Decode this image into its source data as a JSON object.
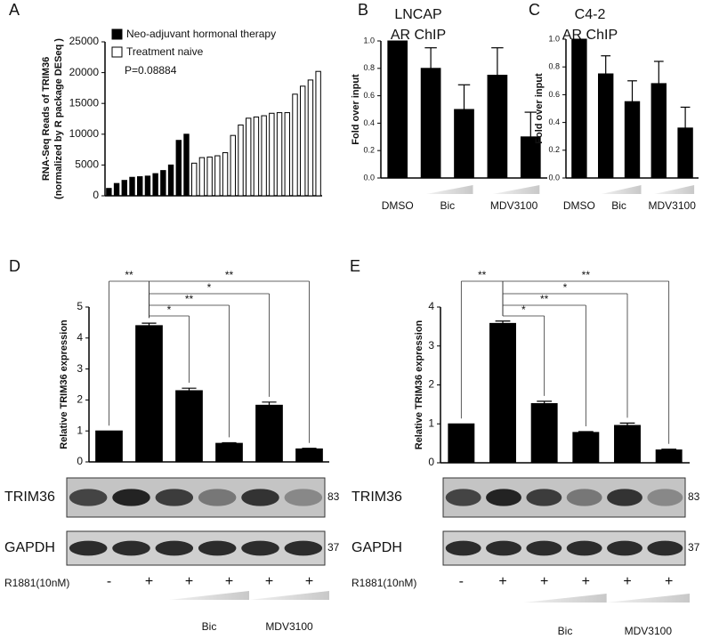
{
  "chart_data": [
    {
      "type": "bar",
      "panel_label": "A",
      "ylabel": [
        "RNA-Seq Reads of TRIM36",
        "(normalized by R package DESeq )"
      ],
      "annotation": "P=0.08884",
      "categories": [
        null,
        null,
        null,
        null,
        null,
        null,
        null,
        null,
        null,
        null,
        null,
        null,
        null,
        null,
        null,
        null,
        null,
        null,
        null,
        null,
        null,
        null,
        null,
        null,
        null,
        null,
        null,
        null
      ],
      "series": [
        {
          "name": "Neo-adjuvant hormonal therapy",
          "color": "#000000",
          "values": [
            1200,
            2000,
            2500,
            3000,
            3100,
            3200,
            3600,
            4100,
            5000,
            9000,
            10000,
            null,
            null,
            null,
            null,
            null,
            null,
            null,
            null,
            null,
            null,
            null,
            null,
            null,
            null,
            null,
            null,
            null
          ]
        },
        {
          "name": "Treatment naive",
          "color": "#ffffff",
          "values": [
            null,
            null,
            null,
            null,
            null,
            null,
            null,
            null,
            null,
            null,
            null,
            5300,
            6200,
            6300,
            6500,
            7000,
            9800,
            11500,
            12600,
            12800,
            13000,
            13400,
            13500,
            13500,
            16500,
            17800,
            18800,
            20200
          ]
        }
      ],
      "ylim": [
        0,
        25000
      ],
      "yticks": [
        0,
        5000,
        10000,
        15000,
        20000,
        25000
      ]
    },
    {
      "type": "bar",
      "panel_label": "B",
      "title": [
        "LNCAP",
        "AR ChIP"
      ],
      "ylabel": "Fold over input",
      "categories": [
        null,
        null,
        null,
        null,
        null
      ],
      "group_labels": [
        "DMSO",
        "Bic",
        "MDV3100"
      ],
      "values": [
        1.0,
        0.8,
        0.5,
        0.75,
        0.3
      ],
      "errors": [
        null,
        0.15,
        0.18,
        0.2,
        0.18
      ],
      "color": "#000000",
      "ylim": [
        0,
        1.0
      ],
      "yticks": [
        {
          "value": 0,
          "label": "0.0"
        },
        {
          "value": 0.2,
          "label": "0.2"
        },
        {
          "value": 0.4,
          "label": "0.4"
        },
        {
          "value": 0.6,
          "label": "0.6"
        },
        {
          "value": 0.8,
          "label": "0.8"
        },
        {
          "value": 1.0,
          "label": "1.0"
        }
      ]
    },
    {
      "type": "bar",
      "panel_label": "C",
      "title": [
        "C4-2",
        "AR ChIP"
      ],
      "ylabel": "Fold over input",
      "categories": [
        null,
        null,
        null,
        null,
        null
      ],
      "group_labels": [
        "DMSO",
        "Bic",
        "MDV3100"
      ],
      "values": [
        1.0,
        0.75,
        0.55,
        0.68,
        0.36
      ],
      "errors": [
        null,
        0.13,
        0.15,
        0.16,
        0.15
      ],
      "color": "#000000",
      "ylim": [
        0,
        1.0
      ],
      "yticks": [
        {
          "value": 0,
          "label": "0.0"
        },
        {
          "value": 0.2,
          "label": "0.2"
        },
        {
          "value": 0.4,
          "label": "0.4"
        },
        {
          "value": 0.6,
          "label": "0.6"
        },
        {
          "value": 0.8,
          "label": "0.8"
        },
        {
          "value": 1.0,
          "label": "1.0"
        }
      ]
    },
    {
      "type": "bar",
      "panel_label": "D",
      "ylabel": "Relative TRIM36 expression",
      "categories": [
        null,
        null,
        null,
        null,
        null,
        null
      ],
      "values": [
        1.0,
        4.4,
        2.3,
        0.6,
        1.83,
        0.42
      ],
      "errors": [
        null,
        0.08,
        0.08,
        0.02,
        0.1,
        0.02
      ],
      "color": "#000000",
      "ylim": [
        0,
        5
      ],
      "yticks": [
        0,
        1,
        2,
        3,
        4,
        5
      ],
      "significance": [
        "**",
        "**",
        "*",
        "**",
        "*"
      ],
      "blots": [
        {
          "name": "TRIM36",
          "size": 83
        },
        {
          "name": "GAPDH",
          "size": 37
        }
      ],
      "treatment": "R1881(10nM)",
      "treatment_signs": [
        "-",
        "+",
        "+",
        "+",
        "+",
        "+"
      ],
      "group_labels": [
        "Bic",
        "MDV3100"
      ]
    },
    {
      "type": "bar",
      "panel_label": "E",
      "ylabel": "Relative TRIM36 expression",
      "categories": [
        null,
        null,
        null,
        null,
        null,
        null
      ],
      "values": [
        1.0,
        3.58,
        1.52,
        0.78,
        0.96,
        0.33
      ],
      "errors": [
        null,
        0.06,
        0.06,
        0.02,
        0.06,
        0.02
      ],
      "color": "#000000",
      "ylim": [
        0,
        4
      ],
      "yticks": [
        0,
        1,
        2,
        3,
        4
      ],
      "significance": [
        "**",
        "**",
        "*",
        "**",
        "*"
      ],
      "blots": [
        {
          "name": "TRIM36",
          "size": 83
        },
        {
          "name": "GAPDH",
          "size": 37
        }
      ],
      "treatment": "R1881(10nM)",
      "treatment_signs": [
        "-",
        "+",
        "+",
        "+",
        "+",
        "+"
      ],
      "group_labels": [
        "Bic",
        "MDV3100"
      ]
    }
  ]
}
